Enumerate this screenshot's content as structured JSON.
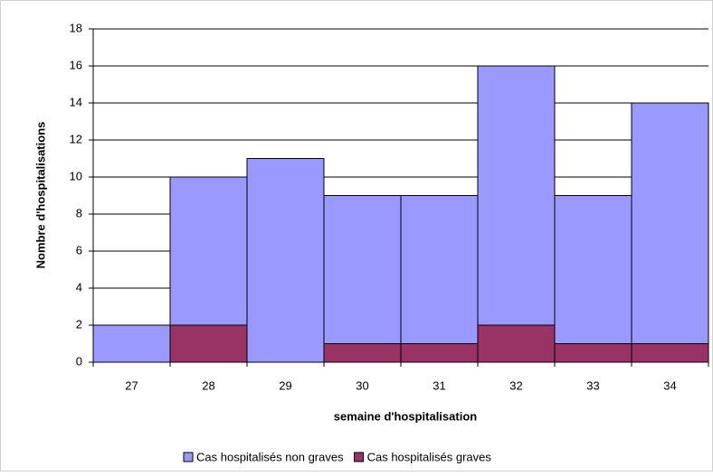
{
  "chart_data": {
    "type": "stacked-bar",
    "categories": [
      "27",
      "28",
      "29",
      "30",
      "31",
      "32",
      "33",
      "34"
    ],
    "series": [
      {
        "name": "Cas hospitalisés non graves",
        "color": "#9999ff",
        "values": [
          2,
          8,
          11,
          8,
          8,
          14,
          8,
          13
        ]
      },
      {
        "name": "Cas hospitalisés graves",
        "color": "#993366",
        "values": [
          0,
          2,
          0,
          1,
          1,
          2,
          1,
          1
        ]
      }
    ],
    "ylim": [
      0,
      18
    ],
    "yticks": [
      0,
      2,
      4,
      6,
      8,
      10,
      12,
      14,
      16,
      18
    ],
    "xlabel": "semaine d'hospitalisation",
    "ylabel": "Nombre d'hospitalisations",
    "grid": true,
    "legend": "bottom"
  }
}
